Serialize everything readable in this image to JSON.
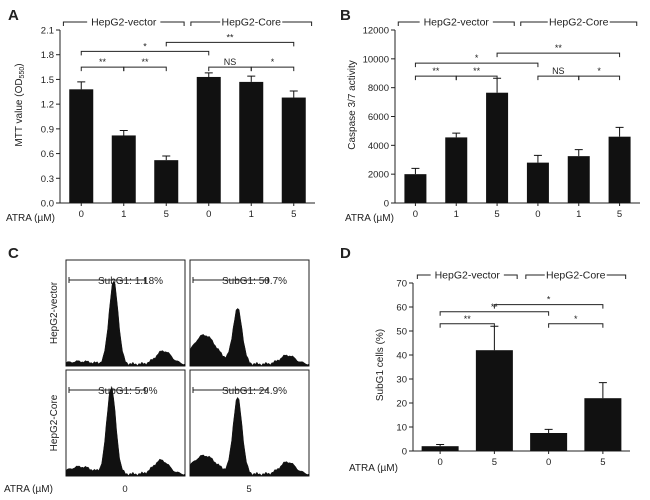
{
  "panel_letters": [
    "A",
    "B",
    "C",
    "D"
  ],
  "group_labels": {
    "vector": "HepG2-vector",
    "core": "HepG2-Core"
  },
  "atra_label": "ATRA (µM)",
  "chart_data": [
    {
      "id": "A",
      "type": "bar",
      "ylabel": "MTT value (OD550)",
      "ylim": [
        0,
        2.1
      ],
      "yticks": [
        "0.0",
        "0.3",
        "0.6",
        "0.9",
        "1.2",
        "1.5",
        "1.8",
        "2.1"
      ],
      "categories": [
        "0",
        "1",
        "5",
        "0",
        "1",
        "5"
      ],
      "values": [
        1.38,
        0.82,
        0.52,
        1.53,
        1.47,
        1.28
      ],
      "errors": [
        0.09,
        0.06,
        0.05,
        0.05,
        0.07,
        0.08
      ],
      "brackets": [
        {
          "from": 0,
          "to": 1,
          "y": 1.65,
          "label": "**"
        },
        {
          "from": 1,
          "to": 2,
          "y": 1.65,
          "label": "**"
        },
        {
          "from": 0,
          "to": 3,
          "y": 1.84,
          "label": "*"
        },
        {
          "from": 2,
          "to": 5,
          "y": 1.95,
          "label": "**"
        },
        {
          "from": 3,
          "to": 4,
          "y": 1.65,
          "label": "NS"
        },
        {
          "from": 4,
          "to": 5,
          "y": 1.65,
          "label": "*"
        }
      ]
    },
    {
      "id": "B",
      "type": "bar",
      "ylabel": "Caspase 3/7 activity",
      "ylim": [
        0,
        12000
      ],
      "yticks": [
        "0",
        "2000",
        "4000",
        "6000",
        "8000",
        "10000",
        "12000"
      ],
      "categories": [
        "0",
        "1",
        "5",
        "0",
        "1",
        "5"
      ],
      "values": [
        2000,
        4550,
        7650,
        2800,
        3250,
        4600
      ],
      "errors": [
        400,
        300,
        1000,
        500,
        450,
        650
      ],
      "brackets": [
        {
          "from": 0,
          "to": 1,
          "y": 8800,
          "label": "**"
        },
        {
          "from": 1,
          "to": 2,
          "y": 8800,
          "label": "**"
        },
        {
          "from": 0,
          "to": 3,
          "y": 9700,
          "label": "*"
        },
        {
          "from": 2,
          "to": 5,
          "y": 10400,
          "label": "**"
        },
        {
          "from": 3,
          "to": 4,
          "y": 8800,
          "label": "NS"
        },
        {
          "from": 4,
          "to": 5,
          "y": 8800,
          "label": "*"
        }
      ]
    },
    {
      "id": "C",
      "type": "histogram",
      "rows": [
        "HepG2-vector",
        "HepG2-Core"
      ],
      "columns": [
        "0",
        "5"
      ],
      "gates": [
        [
          "SubG1: 1.18%",
          "SubG1: 50.7%"
        ],
        [
          "SubG1: 5.9%",
          "SubG1: 24.9%"
        ]
      ]
    },
    {
      "id": "D",
      "type": "bar",
      "ylabel": "SubG1 cells (%)",
      "ylim": [
        0,
        70
      ],
      "yticks": [
        "0",
        "10",
        "20",
        "30",
        "40",
        "50",
        "60",
        "70"
      ],
      "categories": [
        "0",
        "5",
        "0",
        "5"
      ],
      "values": [
        2,
        42,
        7.5,
        22
      ],
      "errors": [
        0.7,
        10,
        1.5,
        6.5
      ],
      "brackets": [
        {
          "from": 0,
          "to": 1,
          "y": 53,
          "label": "**"
        },
        {
          "from": 0,
          "to": 2,
          "y": 58,
          "label": "**"
        },
        {
          "from": 1,
          "to": 3,
          "y": 61,
          "label": "*"
        },
        {
          "from": 2,
          "to": 3,
          "y": 53,
          "label": "*"
        }
      ]
    }
  ]
}
